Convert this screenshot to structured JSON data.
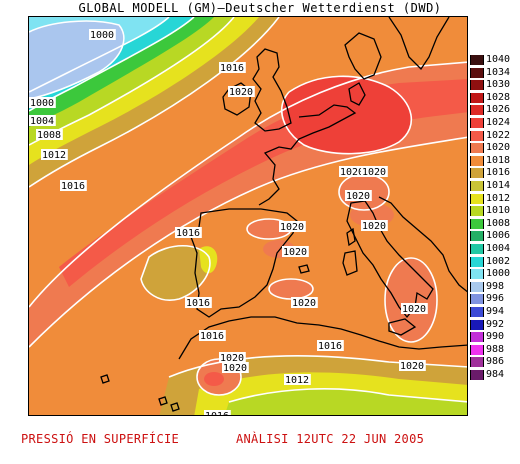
{
  "header": {
    "title": "GLOBAL MODELL (GM)—Deutscher Wetterdienst (DWD)"
  },
  "footer": {
    "variable": "PRESSIÓ EN SUPERFÍCIE",
    "analysis": "ANÀLISI 12UTC 22 JUN 2005"
  },
  "legend": {
    "items": [
      {
        "value": "1040",
        "color": "#3a0f0f"
      },
      {
        "value": "1034",
        "color": "#5c0f0f"
      },
      {
        "value": "1030",
        "color": "#8f1010"
      },
      {
        "value": "1028",
        "color": "#c01818"
      },
      {
        "value": "1026",
        "color": "#dd2a26"
      },
      {
        "value": "1024",
        "color": "#ee4038"
      },
      {
        "value": "1022",
        "color": "#f45a48"
      },
      {
        "value": "1020",
        "color": "#ef7a50"
      },
      {
        "value": "1018",
        "color": "#f08c3a"
      },
      {
        "value": "1016",
        "color": "#cfa33a"
      },
      {
        "value": "1014",
        "color": "#c9c437"
      },
      {
        "value": "1012",
        "color": "#e6e21e"
      },
      {
        "value": "1010",
        "color": "#b8d824"
      },
      {
        "value": "1008",
        "color": "#3cc83c"
      },
      {
        "value": "1006",
        "color": "#24b066"
      },
      {
        "value": "1004",
        "color": "#22c8a4"
      },
      {
        "value": "1002",
        "color": "#27d6d6"
      },
      {
        "value": "1000",
        "color": "#7fe3f2"
      },
      {
        "value": "998",
        "color": "#a9c9ec"
      },
      {
        "value": "996",
        "color": "#7f93e0"
      },
      {
        "value": "994",
        "color": "#3d4bd6"
      },
      {
        "value": "992",
        "color": "#1919b8"
      },
      {
        "value": "990",
        "color": "#c230d8"
      },
      {
        "value": "988",
        "color": "#ee33ee"
      },
      {
        "value": "986",
        "color": "#a0309b"
      },
      {
        "value": "984",
        "color": "#6a1b6a"
      }
    ]
  },
  "map": {
    "colors": {
      "p1000": "#aac6ee",
      "p1004": "#7fe3f2",
      "p1008": "#27d6d6",
      "p1010": "#3cc83c",
      "p1012": "#b8d824",
      "p1014": "#e6e21e",
      "p1016": "#cfa33a",
      "p1018": "#f08c3a",
      "p1020": "#ef7a50",
      "p1022": "#f45a48",
      "p1024": "#ee4038",
      "isobar": "#ffffff",
      "coast": "#000000"
    },
    "isobar_labels": [
      {
        "text": "1000",
        "hp": "p1000"
      },
      {
        "text": "1000",
        "hp": "p1000"
      },
      {
        "text": "1004",
        "hp": "p1004"
      },
      {
        "text": "1008",
        "hp": "p1008"
      },
      {
        "text": "1012",
        "hp": "p1012"
      },
      {
        "text": "1016",
        "hp": "p1016"
      },
      {
        "text": "1016",
        "hp": "p1016"
      },
      {
        "text": "1016",
        "hp": "p1016"
      },
      {
        "text": "1016",
        "hp": "p1016"
      },
      {
        "text": "1016",
        "hp": "p1016"
      },
      {
        "text": "1016",
        "hp": "p1016"
      },
      {
        "text": "1016",
        "hp": "p1016"
      },
      {
        "text": "1012",
        "hp": "p1012"
      },
      {
        "text": "1020",
        "hp": "p1020"
      },
      {
        "text": "1020",
        "hp": "p1020"
      },
      {
        "text": "1020",
        "hp": "p1020"
      },
      {
        "text": "1020",
        "hp": "p1020"
      },
      {
        "text": "1020",
        "hp": "p1020"
      },
      {
        "text": "1020",
        "hp": "p1020"
      },
      {
        "text": "1020",
        "hp": "p1020"
      },
      {
        "text": "1020",
        "hp": "p1020"
      },
      {
        "text": "1020",
        "hp": "p1020"
      },
      {
        "text": "1020",
        "hp": "p1020"
      },
      {
        "text": "1020",
        "hp": "p1020"
      },
      {
        "text": "1020",
        "hp": "p1020"
      }
    ]
  }
}
